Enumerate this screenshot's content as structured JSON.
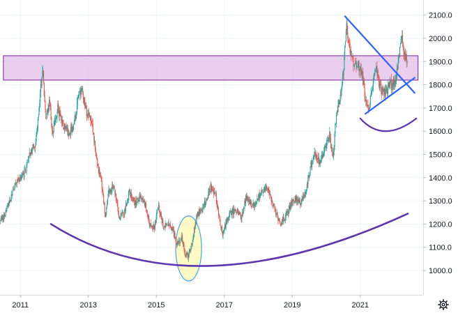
{
  "chart_data": {
    "type": "candlestick",
    "y_axis": {
      "ticks": [
        1000,
        1100,
        1200,
        1300,
        1400,
        1500,
        1600,
        1700,
        1800,
        1900,
        2000,
        2100
      ],
      "tick_labels": [
        "1000.0",
        "1100.0",
        "1200.0",
        "1300.0",
        "1400.0",
        "1500.0",
        "1600.0",
        "1700.0",
        "1800.0",
        "1900.0",
        "2000.0",
        "2100.0"
      ],
      "range": [
        895,
        2165
      ],
      "position": "right"
    },
    "x_axis": {
      "ticks": [
        2011,
        2013,
        2015,
        2017,
        2019,
        2021
      ],
      "tick_labels": [
        "2011",
        "2013",
        "2015",
        "2017",
        "2019",
        "2021"
      ],
      "range": [
        2010.4,
        2022.85
      ]
    },
    "grid": true,
    "colors": {
      "up": "#26a69a",
      "down": "#ef5350",
      "zone_fill": "#e1bee7",
      "zone_stroke": "#7b1fa2",
      "arc": "#5e35b1",
      "trendline": "#2962ff",
      "highlight_fill": "#fff59d",
      "highlight_stroke": "#42a5f5"
    },
    "price_series": [
      [
        2010.4,
        1215
      ],
      [
        2010.55,
        1245
      ],
      [
        2010.7,
        1305
      ],
      [
        2010.85,
        1385
      ],
      [
        2011.0,
        1395
      ],
      [
        2011.15,
        1430
      ],
      [
        2011.3,
        1510
      ],
      [
        2011.45,
        1555
      ],
      [
        2011.6,
        1790
      ],
      [
        2011.65,
        1880
      ],
      [
        2011.75,
        1640
      ],
      [
        2011.85,
        1725
      ],
      [
        2011.95,
        1585
      ],
      [
        2012.1,
        1700
      ],
      [
        2012.25,
        1625
      ],
      [
        2012.4,
        1590
      ],
      [
        2012.55,
        1610
      ],
      [
        2012.7,
        1740
      ],
      [
        2012.8,
        1780
      ],
      [
        2012.95,
        1680
      ],
      [
        2013.1,
        1650
      ],
      [
        2013.25,
        1470
      ],
      [
        2013.4,
        1360
      ],
      [
        2013.5,
        1230
      ],
      [
        2013.6,
        1340
      ],
      [
        2013.75,
        1370
      ],
      [
        2013.9,
        1230
      ],
      [
        2014.05,
        1250
      ],
      [
        2014.2,
        1340
      ],
      [
        2014.35,
        1295
      ],
      [
        2014.5,
        1310
      ],
      [
        2014.65,
        1295
      ],
      [
        2014.8,
        1200
      ],
      [
        2014.95,
        1185
      ],
      [
        2015.05,
        1280
      ],
      [
        2015.2,
        1190
      ],
      [
        2015.35,
        1205
      ],
      [
        2015.5,
        1170
      ],
      [
        2015.6,
        1110
      ],
      [
        2015.75,
        1140
      ],
      [
        2015.85,
        1070
      ],
      [
        2015.95,
        1060
      ],
      [
        2016.05,
        1120
      ],
      [
        2016.2,
        1240
      ],
      [
        2016.35,
        1260
      ],
      [
        2016.5,
        1320
      ],
      [
        2016.6,
        1360
      ],
      [
        2016.75,
        1320
      ],
      [
        2016.85,
        1230
      ],
      [
        2016.95,
        1150
      ],
      [
        2017.05,
        1210
      ],
      [
        2017.2,
        1250
      ],
      [
        2017.35,
        1260
      ],
      [
        2017.5,
        1230
      ],
      [
        2017.65,
        1320
      ],
      [
        2017.8,
        1280
      ],
      [
        2017.95,
        1300
      ],
      [
        2018.1,
        1340
      ],
      [
        2018.25,
        1350
      ],
      [
        2018.4,
        1300
      ],
      [
        2018.55,
        1240
      ],
      [
        2018.65,
        1200
      ],
      [
        2018.8,
        1230
      ],
      [
        2018.95,
        1280
      ],
      [
        2019.1,
        1310
      ],
      [
        2019.25,
        1285
      ],
      [
        2019.4,
        1340
      ],
      [
        2019.5,
        1420
      ],
      [
        2019.65,
        1510
      ],
      [
        2019.8,
        1470
      ],
      [
        2019.95,
        1520
      ],
      [
        2020.1,
        1590
      ],
      [
        2020.2,
        1480
      ],
      [
        2020.3,
        1690
      ],
      [
        2020.4,
        1730
      ],
      [
        2020.5,
        1860
      ],
      [
        2020.6,
        2050
      ],
      [
        2020.7,
        1950
      ],
      [
        2020.8,
        1890
      ],
      [
        2020.95,
        1880
      ],
      [
        2021.05,
        1850
      ],
      [
        2021.15,
        1740
      ],
      [
        2021.25,
        1690
      ],
      [
        2021.35,
        1780
      ],
      [
        2021.45,
        1890
      ],
      [
        2021.55,
        1800
      ],
      [
        2021.65,
        1770
      ],
      [
        2021.75,
        1760
      ],
      [
        2021.85,
        1800
      ],
      [
        2021.95,
        1800
      ],
      [
        2022.05,
        1830
      ],
      [
        2022.15,
        1940
      ],
      [
        2022.22,
        2000
      ],
      [
        2022.3,
        1930
      ],
      [
        2022.38,
        1900
      ]
    ],
    "annotations": {
      "resistance_zone": {
        "x_range": [
          2010.5,
          2022.7
        ],
        "y_range": [
          1820,
          1925
        ]
      },
      "bottom_arc": {
        "points": [
          [
            2011.9,
            1200
          ],
          [
            2016.6,
            1020
          ],
          [
            2022.4,
            1245
          ]
        ]
      },
      "recent_arc": {
        "points": [
          [
            2021.0,
            1655
          ],
          [
            2021.75,
            1600
          ],
          [
            2022.65,
            1655
          ]
        ]
      },
      "trendline_down": {
        "from": [
          2020.55,
          2095
        ],
        "to": [
          2022.6,
          1765
        ]
      },
      "trendline_up": {
        "from": [
          2021.15,
          1675
        ],
        "to": [
          2022.6,
          1830
        ]
      },
      "highlight_ellipse": {
        "center": [
          2015.95,
          1095
        ],
        "x_radius": 0.38,
        "y_radius": 140
      }
    }
  },
  "icons": {
    "settings": "gear-icon"
  }
}
